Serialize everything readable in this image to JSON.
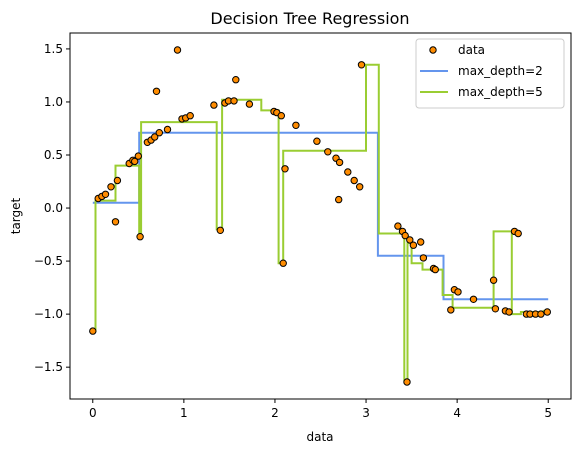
{
  "chart_data": {
    "type": "scatter",
    "title": "Decision Tree Regression",
    "xlabel": "data",
    "ylabel": "target",
    "xlim": [
      -0.25,
      5.25
    ],
    "ylim": [
      -1.8,
      1.65
    ],
    "xticks": [
      {
        "value": 0,
        "label": "0"
      },
      {
        "value": 1,
        "label": "1"
      },
      {
        "value": 2,
        "label": "2"
      },
      {
        "value": 3,
        "label": "3"
      },
      {
        "value": 4,
        "label": "4"
      },
      {
        "value": 5,
        "label": "5"
      }
    ],
    "yticks": [
      {
        "value": 1.5,
        "label": "1.5"
      },
      {
        "value": 1.0,
        "label": "1.0"
      },
      {
        "value": 0.5,
        "label": "0.5"
      },
      {
        "value": 0.0,
        "label": "0.0"
      },
      {
        "value": -0.5,
        "label": "−0.5"
      },
      {
        "value": -1.0,
        "label": "−1.0"
      },
      {
        "value": -1.5,
        "label": "−1.5"
      }
    ],
    "grid": false,
    "legend_position": "top-right",
    "colors": {
      "data_fill": "#ff8c00",
      "data_edge": "#000000",
      "max_depth_2": "#6495ed",
      "max_depth_5": "#9acd32"
    },
    "legend": [
      {
        "label": "data",
        "kind": "marker",
        "color": "#ff8c00"
      },
      {
        "label": "max_depth=2",
        "kind": "line",
        "color": "#6495ed"
      },
      {
        "label": "max_depth=5",
        "kind": "line",
        "color": "#9acd32"
      }
    ],
    "scatter": {
      "name": "data",
      "x": [
        0.0,
        0.06,
        0.1,
        0.14,
        0.2,
        0.25,
        0.27,
        0.4,
        0.44,
        0.46,
        0.5,
        0.52,
        0.6,
        0.64,
        0.68,
        0.7,
        0.73,
        0.82,
        0.93,
        0.98,
        1.02,
        1.07,
        1.33,
        1.4,
        1.45,
        1.49,
        1.55,
        1.57,
        1.72,
        1.99,
        2.02,
        2.07,
        2.09,
        2.11,
        2.23,
        2.46,
        2.58,
        2.67,
        2.7,
        2.71,
        2.8,
        2.87,
        2.93,
        2.95,
        3.35,
        3.4,
        3.43,
        3.45,
        3.48,
        3.52,
        3.6,
        3.63,
        3.74,
        3.76,
        3.93,
        3.97,
        4.01,
        4.18,
        4.4,
        4.42,
        4.53,
        4.57,
        4.63,
        4.67,
        4.76,
        4.8,
        4.86,
        4.92,
        4.99
      ],
      "y": [
        -1.16,
        0.09,
        0.11,
        0.13,
        0.2,
        -0.13,
        0.26,
        0.42,
        0.45,
        0.44,
        0.49,
        -0.27,
        0.62,
        0.64,
        0.67,
        1.1,
        0.71,
        0.74,
        1.49,
        0.84,
        0.85,
        0.87,
        0.97,
        -0.21,
        0.99,
        1.01,
        1.01,
        1.21,
        0.98,
        0.91,
        0.9,
        0.87,
        -0.52,
        0.37,
        0.78,
        0.63,
        0.53,
        0.47,
        0.08,
        0.43,
        0.34,
        0.26,
        0.2,
        1.35,
        -0.17,
        -0.22,
        -0.26,
        -1.64,
        -0.3,
        -0.35,
        -0.32,
        -0.47,
        -0.57,
        -0.58,
        -0.96,
        -0.77,
        -0.79,
        -0.86,
        -0.68,
        -0.95,
        -0.97,
        -0.98,
        -0.22,
        -0.24,
        -1.0,
        -1.0,
        -1.0,
        -1.0,
        -0.98
      ]
    },
    "series": [
      {
        "name": "max_depth=2",
        "type": "step",
        "x": [
          0.0,
          0.51,
          0.51,
          3.13,
          3.13,
          3.85,
          3.85,
          5.0
        ],
        "y": [
          0.05,
          0.05,
          0.71,
          0.71,
          -0.45,
          -0.45,
          -0.86,
          -0.86
        ]
      },
      {
        "name": "max_depth=5",
        "type": "step",
        "x": [
          0.0,
          0.03,
          0.03,
          0.25,
          0.25,
          0.51,
          0.51,
          0.53,
          0.53,
          1.36,
          1.36,
          1.42,
          1.42,
          1.85,
          1.85,
          2.04,
          2.04,
          2.09,
          2.09,
          3.0,
          3.0,
          3.14,
          3.14,
          3.42,
          3.42,
          3.455,
          3.455,
          3.5,
          3.5,
          3.62,
          3.62,
          3.84,
          3.84,
          3.95,
          3.95,
          4.4,
          4.4,
          4.6,
          4.6,
          4.7,
          4.7,
          4.95,
          4.95,
          5.0
        ],
        "y": [
          -1.16,
          -1.16,
          0.07,
          0.07,
          0.4,
          0.4,
          -0.27,
          -0.27,
          0.81,
          0.81,
          -0.2,
          -0.2,
          1.02,
          1.02,
          0.92,
          0.92,
          -0.52,
          -0.52,
          0.54,
          0.54,
          1.35,
          1.35,
          -0.24,
          -0.24,
          -1.62,
          -1.62,
          -0.33,
          -0.33,
          -0.52,
          -0.52,
          -0.58,
          -0.58,
          -0.82,
          -0.82,
          -0.94,
          -0.94,
          -0.22,
          -0.22,
          -1.0,
          -1.0,
          -0.98,
          -0.98,
          -0.97,
          -0.97
        ]
      }
    ]
  }
}
